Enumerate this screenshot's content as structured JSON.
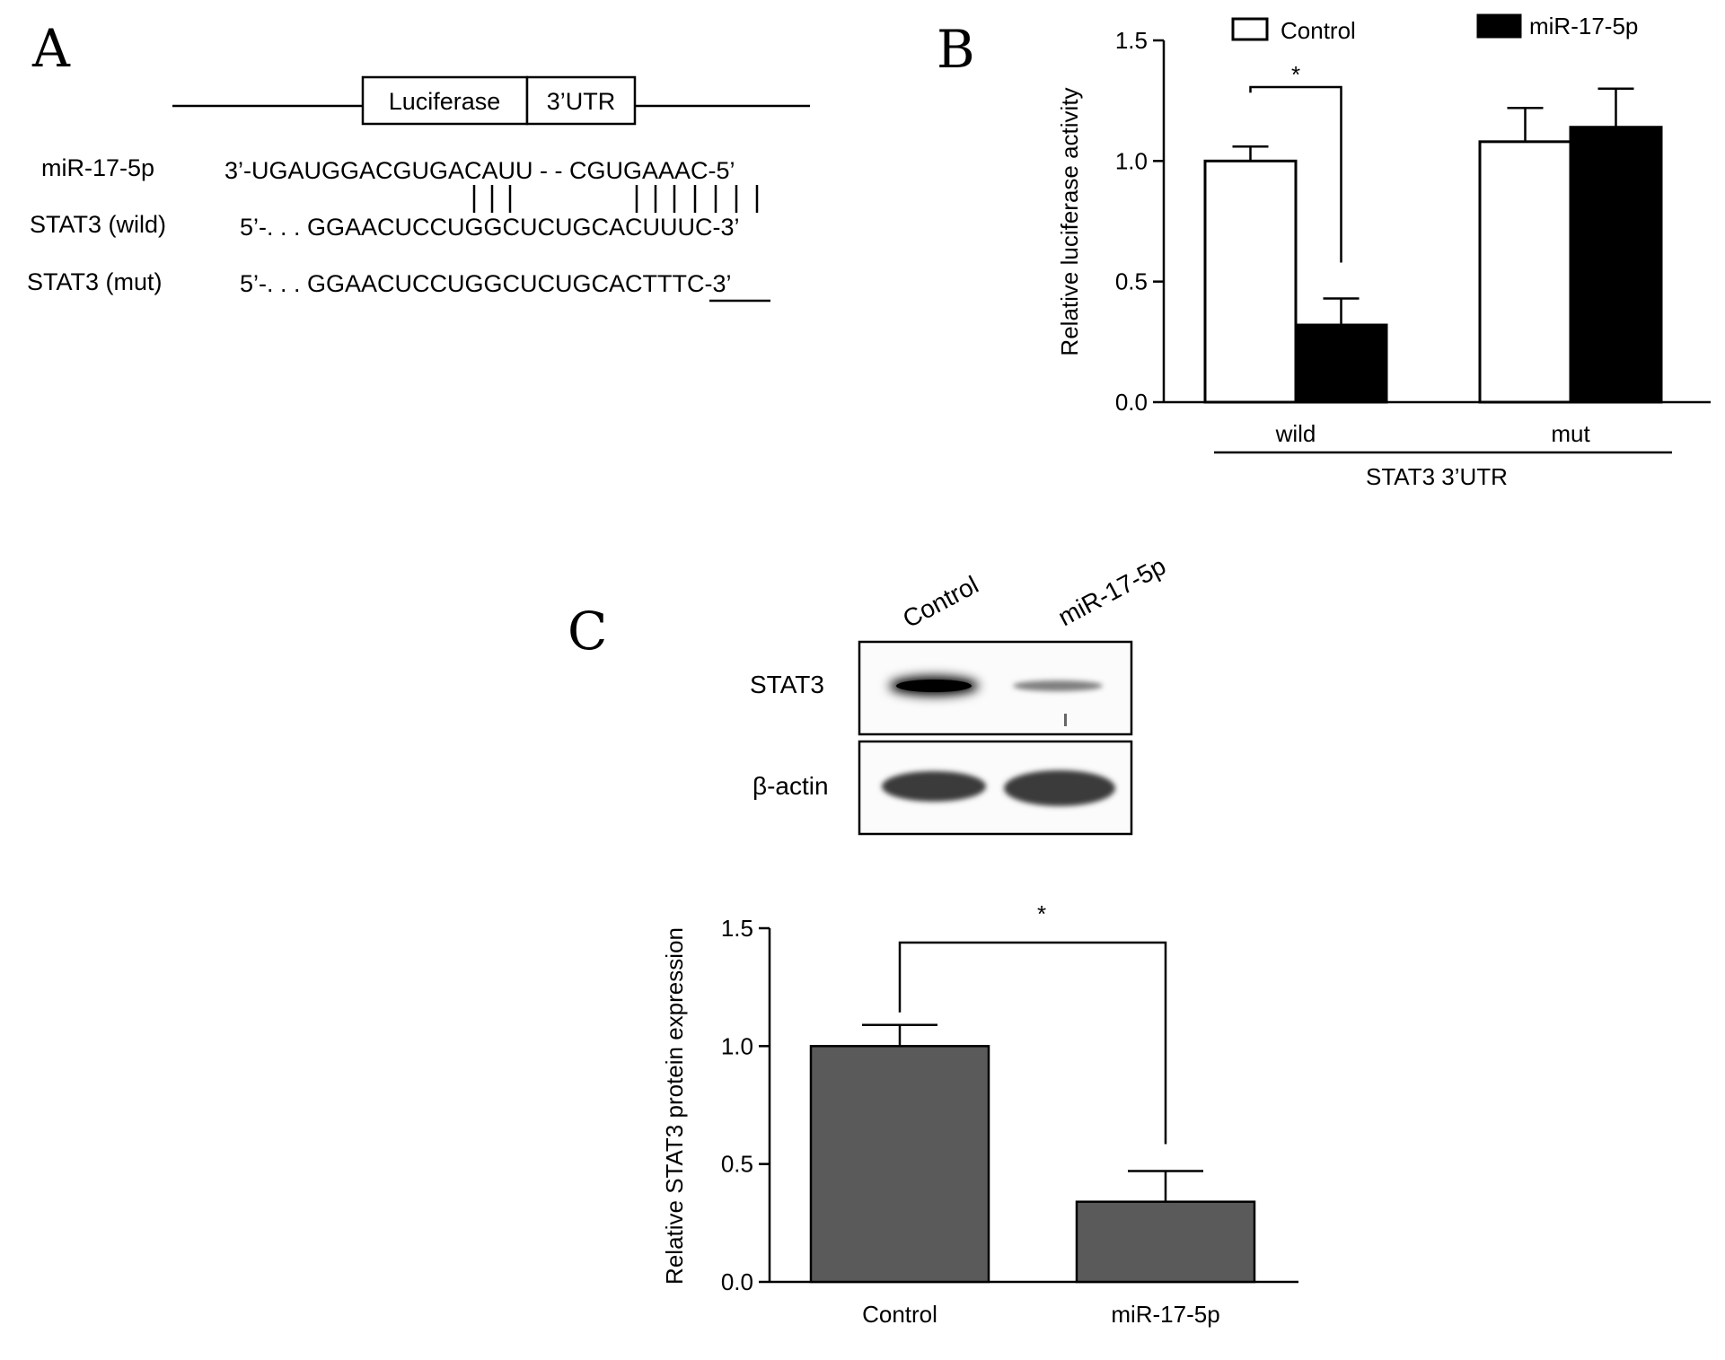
{
  "panels": {
    "a": {
      "letter": "A",
      "construct": {
        "box1": "Luciferase",
        "box2": "3’UTR"
      },
      "rows": [
        {
          "label": "miR-17-5p",
          "sequence": "3’-UGAUGGACGUGACAUU - - CGUGAAAC-5’"
        },
        {
          "label": "STAT3 (wild)",
          "sequence": "5’-. . . GGAACUCCUGGCUCUGCACUUUC-3’"
        },
        {
          "label": "STAT3 (mut)",
          "sequence": "5’-. . . GGAACUCCUGGCUCUGCACTTTC-3’"
        }
      ],
      "pairing_marks": "| | |          | | | | | | |"
    },
    "b": {
      "letter": "B"
    },
    "c": {
      "letter": "C",
      "blot": {
        "lanes": [
          "Control",
          "miR-17-5p"
        ],
        "rows": [
          "STAT3",
          "β-actin"
        ]
      }
    }
  },
  "chart_data": [
    {
      "type": "bar",
      "panel": "B",
      "categories": [
        "wild",
        "mut"
      ],
      "group_label": "STAT3 3’UTR",
      "series": [
        {
          "name": "Control",
          "values": [
            1.0,
            1.08
          ],
          "errors": [
            0.06,
            0.14
          ],
          "color": "#ffffff"
        },
        {
          "name": "miR-17-5p",
          "values": [
            0.32,
            1.14
          ],
          "errors": [
            0.11,
            0.16
          ],
          "color": "#000000"
        }
      ],
      "ylabel": "Relative luciferase activity",
      "ylim": [
        0,
        1.5
      ],
      "yticks": [
        "0.0",
        "0.5",
        "1.0",
        "1.5"
      ],
      "significance": "*",
      "legend": "top"
    },
    {
      "type": "bar",
      "panel": "C",
      "categories": [
        "Control",
        "miR-17-5p"
      ],
      "values": [
        1.0,
        0.34
      ],
      "errors": [
        0.09,
        0.13
      ],
      "color": "#5a5a5a",
      "ylabel": "Relative STAT3 protein expression",
      "ylim": [
        0,
        1.5
      ],
      "yticks": [
        "0.0",
        "0.5",
        "1.0",
        "1.5"
      ],
      "significance": "*"
    }
  ]
}
